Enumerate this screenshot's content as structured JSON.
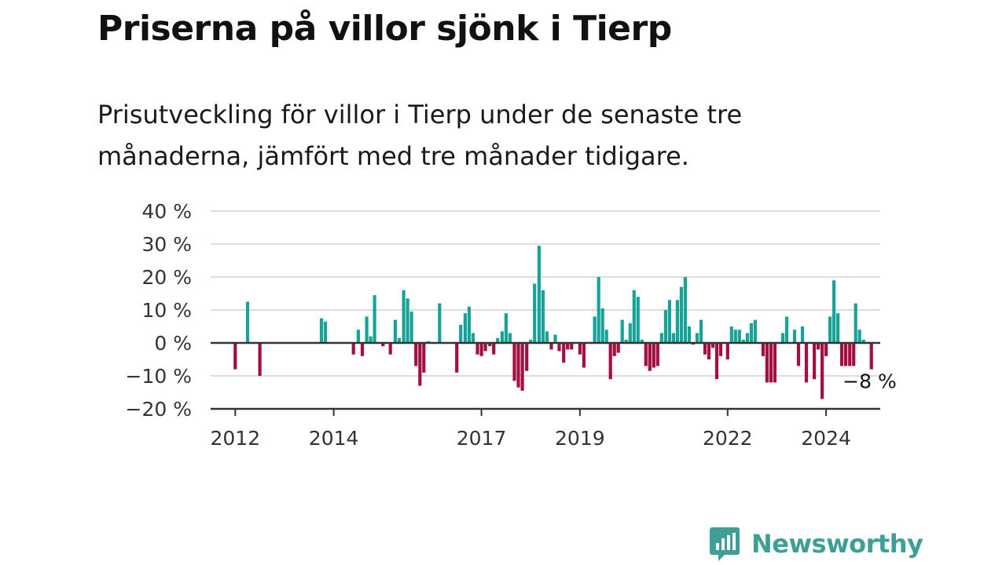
{
  "header": {
    "title": "Priserna på villor sjönk i Tierp",
    "subtitle": "Prisutveckling för villor i Tierp under de senaste tre månaderna, jämfört med tre månader tidigare."
  },
  "brand": {
    "name": "Newsworthy",
    "color": "#3d9f96"
  },
  "chart_data": {
    "type": "bar",
    "title": "Priserna på villor sjönk i Tierp",
    "subtitle": "Prisutveckling för villor i Tierp under de senaste tre månaderna, jämfört med tre månader tidigare.",
    "xlabel": "",
    "ylabel": "",
    "ylim": [
      -20,
      40
    ],
    "y_ticks": [
      40,
      30,
      20,
      10,
      0,
      -10,
      -20
    ],
    "y_tick_labels": [
      "40 %",
      "30 %",
      "20 %",
      "10 %",
      "0 %",
      "−10 %",
      "−20 %"
    ],
    "x_ticks": [
      2012,
      2014,
      2017,
      2019,
      2022,
      2024
    ],
    "xlim": [
      2011.5,
      2025.1
    ],
    "grid": "horizontal",
    "colors": {
      "positive": "#18a399",
      "negative": "#a3103f",
      "grid": "#dddddd",
      "axis": "#333333"
    },
    "annotation": {
      "text": "−8 %",
      "x": 2024.92,
      "value": -8
    },
    "points": [
      {
        "x": 2012.0,
        "y": -8
      },
      {
        "x": 2012.25,
        "y": 12.5
      },
      {
        "x": 2012.5,
        "y": -10
      },
      {
        "x": 2013.75,
        "y": 7.5
      },
      {
        "x": 2013.83,
        "y": 6.5
      },
      {
        "x": 2014.4,
        "y": -3.5
      },
      {
        "x": 2014.5,
        "y": 4
      },
      {
        "x": 2014.58,
        "y": -4
      },
      {
        "x": 2014.67,
        "y": 8
      },
      {
        "x": 2014.75,
        "y": 2
      },
      {
        "x": 2014.83,
        "y": 14.5
      },
      {
        "x": 2015.0,
        "y": -1
      },
      {
        "x": 2015.15,
        "y": -3.5
      },
      {
        "x": 2015.25,
        "y": 7
      },
      {
        "x": 2015.33,
        "y": 1.5
      },
      {
        "x": 2015.42,
        "y": 16
      },
      {
        "x": 2015.5,
        "y": 13.5
      },
      {
        "x": 2015.58,
        "y": 9.5
      },
      {
        "x": 2015.67,
        "y": -7
      },
      {
        "x": 2015.75,
        "y": -13
      },
      {
        "x": 2015.83,
        "y": -9
      },
      {
        "x": 2015.92,
        "y": 0.5
      },
      {
        "x": 2016.15,
        "y": 12
      },
      {
        "x": 2016.5,
        "y": -9
      },
      {
        "x": 2016.58,
        "y": 5.5
      },
      {
        "x": 2016.67,
        "y": 9
      },
      {
        "x": 2016.75,
        "y": 11
      },
      {
        "x": 2016.83,
        "y": 3
      },
      {
        "x": 2016.92,
        "y": -3.5
      },
      {
        "x": 2017.0,
        "y": -4
      },
      {
        "x": 2017.08,
        "y": -2.5
      },
      {
        "x": 2017.17,
        "y": -1
      },
      {
        "x": 2017.25,
        "y": -3.5
      },
      {
        "x": 2017.33,
        "y": 1.5
      },
      {
        "x": 2017.42,
        "y": 3.5
      },
      {
        "x": 2017.5,
        "y": 9
      },
      {
        "x": 2017.58,
        "y": 3
      },
      {
        "x": 2017.67,
        "y": -11.5
      },
      {
        "x": 2017.75,
        "y": -13.5
      },
      {
        "x": 2017.83,
        "y": -14.5
      },
      {
        "x": 2017.92,
        "y": -8.5
      },
      {
        "x": 2018.0,
        "y": 1
      },
      {
        "x": 2018.08,
        "y": 18
      },
      {
        "x": 2018.17,
        "y": 29.5
      },
      {
        "x": 2018.25,
        "y": 16
      },
      {
        "x": 2018.33,
        "y": 3.5
      },
      {
        "x": 2018.42,
        "y": -2
      },
      {
        "x": 2018.5,
        "y": 2.5
      },
      {
        "x": 2018.58,
        "y": -2.5
      },
      {
        "x": 2018.67,
        "y": -6
      },
      {
        "x": 2018.75,
        "y": -2
      },
      {
        "x": 2018.83,
        "y": -2
      },
      {
        "x": 2019.0,
        "y": -3.5
      },
      {
        "x": 2019.08,
        "y": -7.5
      },
      {
        "x": 2019.3,
        "y": 8
      },
      {
        "x": 2019.38,
        "y": 20
      },
      {
        "x": 2019.46,
        "y": 10.5
      },
      {
        "x": 2019.54,
        "y": 4
      },
      {
        "x": 2019.62,
        "y": -11
      },
      {
        "x": 2019.7,
        "y": -4
      },
      {
        "x": 2019.78,
        "y": -3
      },
      {
        "x": 2019.86,
        "y": 7
      },
      {
        "x": 2019.94,
        "y": 1
      },
      {
        "x": 2020.02,
        "y": 6
      },
      {
        "x": 2020.1,
        "y": 16
      },
      {
        "x": 2020.18,
        "y": 14
      },
      {
        "x": 2020.26,
        "y": 1
      },
      {
        "x": 2020.34,
        "y": -7
      },
      {
        "x": 2020.42,
        "y": -8.5
      },
      {
        "x": 2020.5,
        "y": -7.5
      },
      {
        "x": 2020.58,
        "y": -7
      },
      {
        "x": 2020.66,
        "y": 3
      },
      {
        "x": 2020.74,
        "y": 10
      },
      {
        "x": 2020.82,
        "y": 13
      },
      {
        "x": 2020.9,
        "y": 3
      },
      {
        "x": 2020.98,
        "y": 13
      },
      {
        "x": 2021.06,
        "y": 17
      },
      {
        "x": 2021.14,
        "y": 20
      },
      {
        "x": 2021.22,
        "y": 5
      },
      {
        "x": 2021.3,
        "y": -0.5
      },
      {
        "x": 2021.38,
        "y": 3
      },
      {
        "x": 2021.46,
        "y": 7
      },
      {
        "x": 2021.54,
        "y": -3.5
      },
      {
        "x": 2021.62,
        "y": -5
      },
      {
        "x": 2021.7,
        "y": -1.5
      },
      {
        "x": 2021.78,
        "y": -11
      },
      {
        "x": 2021.86,
        "y": -4
      },
      {
        "x": 2022.0,
        "y": -5
      },
      {
        "x": 2022.08,
        "y": 5
      },
      {
        "x": 2022.16,
        "y": 4
      },
      {
        "x": 2022.24,
        "y": 4
      },
      {
        "x": 2022.32,
        "y": 1
      },
      {
        "x": 2022.4,
        "y": 3
      },
      {
        "x": 2022.48,
        "y": 6
      },
      {
        "x": 2022.56,
        "y": 7
      },
      {
        "x": 2022.72,
        "y": -4
      },
      {
        "x": 2022.8,
        "y": -12
      },
      {
        "x": 2022.88,
        "y": -12
      },
      {
        "x": 2022.96,
        "y": -12
      },
      {
        "x": 2023.12,
        "y": 3
      },
      {
        "x": 2023.2,
        "y": 8
      },
      {
        "x": 2023.36,
        "y": 4
      },
      {
        "x": 2023.44,
        "y": -7
      },
      {
        "x": 2023.52,
        "y": 5
      },
      {
        "x": 2023.6,
        "y": -12
      },
      {
        "x": 2023.76,
        "y": -11
      },
      {
        "x": 2023.84,
        "y": -2
      },
      {
        "x": 2023.92,
        "y": -17
      },
      {
        "x": 2024.0,
        "y": -4
      },
      {
        "x": 2024.08,
        "y": 8
      },
      {
        "x": 2024.16,
        "y": 19
      },
      {
        "x": 2024.24,
        "y": 9
      },
      {
        "x": 2024.32,
        "y": -7
      },
      {
        "x": 2024.4,
        "y": -7
      },
      {
        "x": 2024.48,
        "y": -7
      },
      {
        "x": 2024.56,
        "y": -7
      },
      {
        "x": 2024.6,
        "y": 12
      },
      {
        "x": 2024.68,
        "y": 4
      },
      {
        "x": 2024.76,
        "y": 1
      },
      {
        "x": 2024.92,
        "y": -8
      }
    ]
  }
}
